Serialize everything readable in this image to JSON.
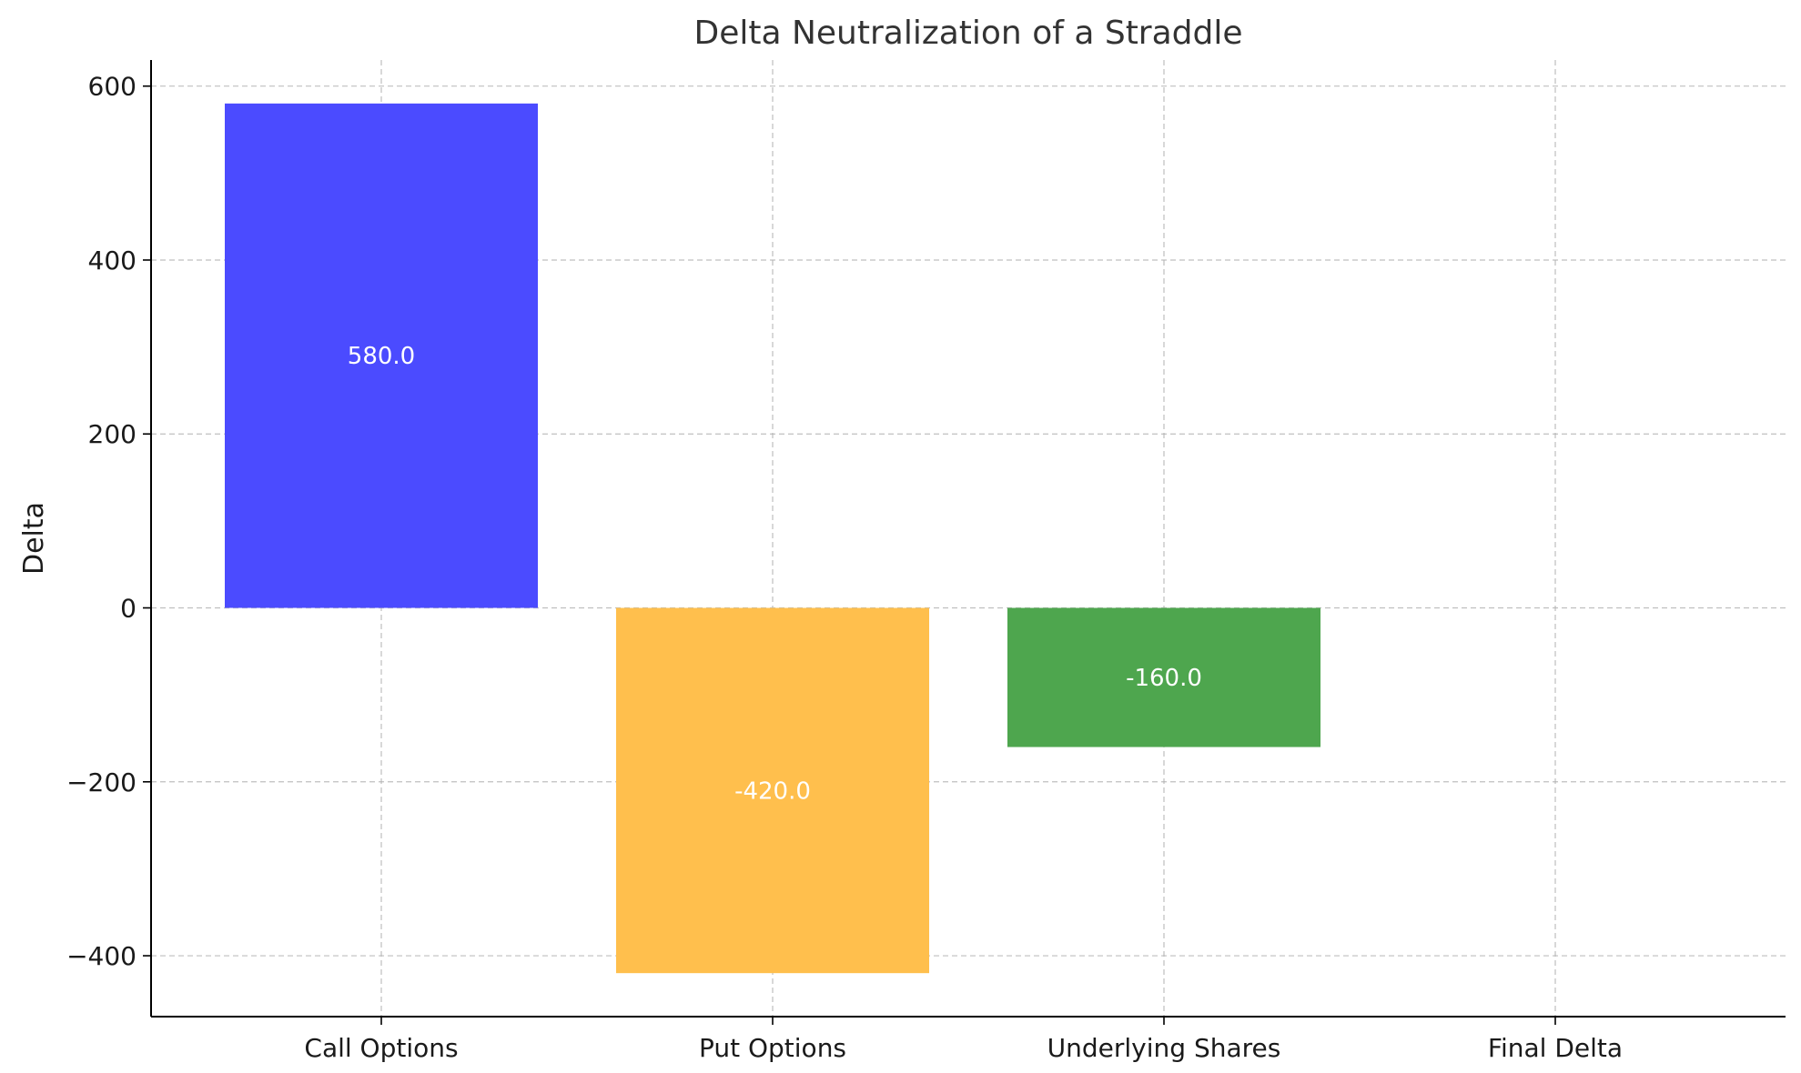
{
  "chart_data": {
    "type": "bar",
    "title": "Delta Neutralization of a Straddle",
    "xlabel": "",
    "ylabel": "Delta",
    "categories": [
      "Call Options",
      "Put Options",
      "Underlying Shares",
      "Final Delta"
    ],
    "values": [
      580.0,
      -420.0,
      -160.0,
      0.0
    ],
    "data_labels": [
      "580.0",
      "-420.0",
      "-160.0",
      ""
    ],
    "colors": [
      "#4b4bff",
      "#ffbf4d",
      "#4ea64e",
      "#ffffff"
    ],
    "ylim": [
      -470,
      630
    ],
    "yticks": [
      600,
      400,
      200,
      0,
      -200,
      -400
    ],
    "ytick_labels": [
      "600",
      "400",
      "200",
      "0",
      "−200",
      "−400"
    ],
    "grid": true
  }
}
